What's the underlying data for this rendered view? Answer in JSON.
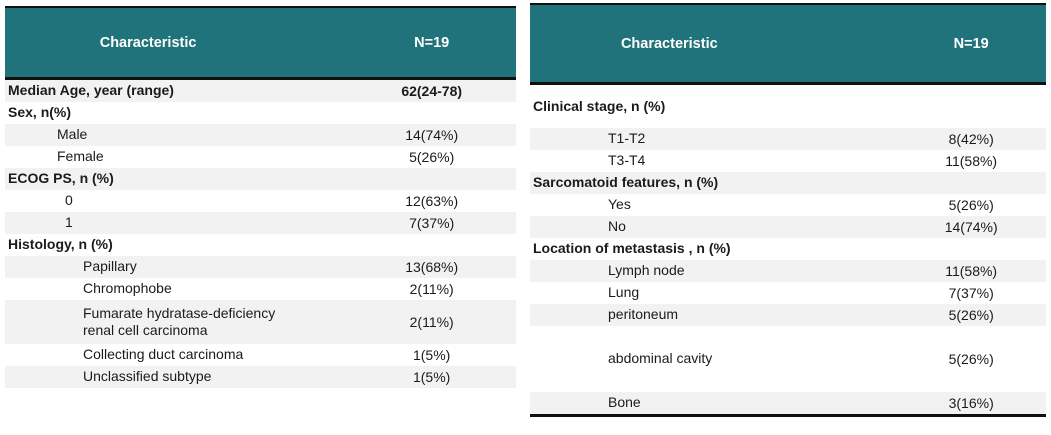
{
  "colors": {
    "header_bg": "#20737A",
    "header_text": "#ffffff",
    "stripe": "#F2F2F2",
    "border": "#101010",
    "text": "#1b1b1b"
  },
  "tables": [
    {
      "name": "patient-characteristics-left",
      "header": {
        "characteristic": "Characteristic",
        "n": "N=19"
      },
      "rows": [
        {
          "label": "Median Age, year (range)",
          "value": "62(24-78)",
          "bold": true,
          "indent": 0,
          "shaded": true
        },
        {
          "label": "Sex, n(%)",
          "value": "",
          "bold": true,
          "indent": 0,
          "shaded": false
        },
        {
          "label": "Male",
          "value": "14(74%)",
          "bold": false,
          "indent": 1,
          "shaded": true
        },
        {
          "label": "Female",
          "value": "5(26%)",
          "bold": false,
          "indent": 1,
          "shaded": false
        },
        {
          "label": "ECOG PS, n (%)",
          "value": "",
          "bold": true,
          "indent": 0,
          "shaded": true
        },
        {
          "label": "0",
          "value": "12(63%)",
          "bold": false,
          "indent": 2,
          "shaded": false
        },
        {
          "label": "1",
          "value": "7(37%)",
          "bold": false,
          "indent": 2,
          "shaded": true
        },
        {
          "label": "Histology, n (%)",
          "value": "",
          "bold": true,
          "indent": 0,
          "shaded": false
        },
        {
          "label": "Papillary",
          "value": "13(68%)",
          "bold": false,
          "indent": 3,
          "shaded": true
        },
        {
          "label": "Chromophobe",
          "value": "2(11%)",
          "bold": false,
          "indent": 3,
          "shaded": false
        },
        {
          "label": "Fumarate hydratase-deficiency\nrenal cell carcinoma",
          "value": "2(11%)",
          "bold": false,
          "indent": 3,
          "shaded": true,
          "size": "double"
        },
        {
          "label": "Collecting duct carcinoma",
          "value": "1(5%)",
          "bold": false,
          "indent": 3,
          "shaded": false
        },
        {
          "label": "Unclassified subtype",
          "value": "1(5%)",
          "bold": false,
          "indent": 3,
          "shaded": true
        }
      ]
    },
    {
      "name": "disease-characteristics-right",
      "header": {
        "characteristic": "Characteristic",
        "n": "N=19"
      },
      "rows": [
        {
          "label": "Clinical stage, n (%)",
          "value": "",
          "bold": true,
          "indent": 0,
          "shaded": false,
          "size": "tall"
        },
        {
          "label": "T1-T2",
          "value": "8(42%)",
          "bold": false,
          "indent": 3,
          "shaded": true
        },
        {
          "label": "T3-T4",
          "value": "11(58%)",
          "bold": false,
          "indent": 3,
          "shaded": false
        },
        {
          "label": "Sarcomatoid features, n (%)",
          "value": "",
          "bold": true,
          "indent": 0,
          "shaded": true
        },
        {
          "label": "Yes",
          "value": "5(26%)",
          "bold": false,
          "indent": 3,
          "shaded": false
        },
        {
          "label": "No",
          "value": "14(74%)",
          "bold": false,
          "indent": 3,
          "shaded": true
        },
        {
          "label": "Location of metastasis , n (%)",
          "value": "",
          "bold": true,
          "indent": 0,
          "shaded": false
        },
        {
          "label": "Lymph node",
          "value": "11(58%)",
          "bold": false,
          "indent": 3,
          "shaded": true
        },
        {
          "label": "Lung",
          "value": "7(37%)",
          "bold": false,
          "indent": 3,
          "shaded": false
        },
        {
          "label": "peritoneum",
          "value": "5(26%)",
          "bold": false,
          "indent": 3,
          "shaded": true
        },
        {
          "label": "abdominal cavity",
          "value": "5(26%)",
          "bold": false,
          "indent": 3,
          "shaded": false,
          "size": "xtall"
        },
        {
          "label": "Bone",
          "value": "3(16%)",
          "bold": false,
          "indent": 3,
          "shaded": true,
          "bottom_border": true
        }
      ]
    }
  ]
}
